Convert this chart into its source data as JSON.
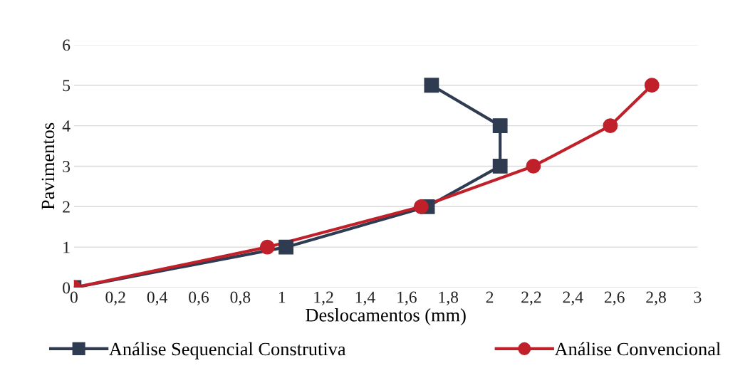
{
  "chart_data": {
    "type": "line",
    "xlabel": "Deslocamentos (mm)",
    "ylabel": "Pavimentos",
    "series": [
      {
        "name": "Análise Sequencial Construtiva",
        "color": "#2e3b50",
        "marker": "square",
        "x": [
          0,
          1.02,
          1.7,
          2.05,
          2.05,
          1.72
        ],
        "values": [
          0,
          1,
          2,
          3,
          4,
          5
        ]
      },
      {
        "name": "Análise Convencional",
        "color": "#c0202a",
        "marker": "circle",
        "x": [
          0,
          0.93,
          1.67,
          2.21,
          2.58,
          2.78
        ],
        "values": [
          0,
          1,
          2,
          3,
          4,
          5
        ]
      }
    ],
    "xlim": [
      0,
      3
    ],
    "ylim": [
      0,
      6
    ],
    "xticks": [
      0,
      {
        "value": 0.2,
        "label": "0,2"
      },
      {
        "value": 0.4,
        "label": "0,4"
      },
      {
        "value": 0.6,
        "label": "0,6"
      },
      {
        "value": 0.8,
        "label": "0,8"
      },
      1,
      {
        "value": 1.2,
        "label": "1,2"
      },
      {
        "value": 1.4,
        "label": "1,4"
      },
      {
        "value": 1.6,
        "label": "1,6"
      },
      {
        "value": 1.8,
        "label": "1,8"
      },
      2,
      {
        "value": 2.2,
        "label": "2,2"
      },
      {
        "value": 2.4,
        "label": "2,4"
      },
      {
        "value": 2.6,
        "label": "2,6"
      },
      {
        "value": 2.8,
        "label": "2,8"
      },
      3
    ],
    "yticks": [
      0,
      1,
      2,
      3,
      4,
      5,
      6
    ],
    "grid": "y",
    "legend": "bottom",
    "line_style": "solid"
  }
}
